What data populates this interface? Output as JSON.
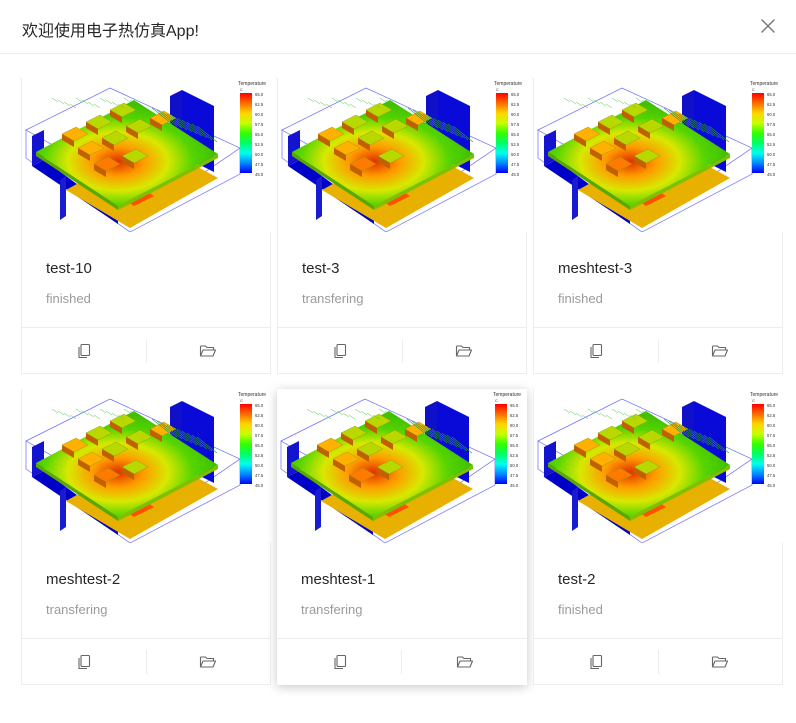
{
  "header": {
    "title": "欢迎使用电子热仿真App!"
  },
  "thumbnail": {
    "legend_title": "Temperature",
    "legend_unit": "C",
    "legend_ticks": [
      "65.0",
      "62.5",
      "60.0",
      "57.5",
      "55.0",
      "52.5",
      "50.0",
      "47.5",
      "45.0"
    ],
    "legend_colors": [
      "#ff0000",
      "#ff6a00",
      "#ffd400",
      "#c8ff00",
      "#33ff00",
      "#00ff66",
      "#00ffee",
      "#0088ff",
      "#0000ff"
    ]
  },
  "cards": [
    {
      "name": "test-10",
      "status": "finished"
    },
    {
      "name": "test-3",
      "status": "transfering"
    },
    {
      "name": "meshtest-3",
      "status": "finished"
    },
    {
      "name": "meshtest-2",
      "status": "transfering"
    },
    {
      "name": "meshtest-1",
      "status": "transfering"
    },
    {
      "name": "test-2",
      "status": "finished"
    }
  ],
  "icons": {
    "copy": "copy-icon",
    "open": "folder-open-icon",
    "close": "close-icon"
  }
}
